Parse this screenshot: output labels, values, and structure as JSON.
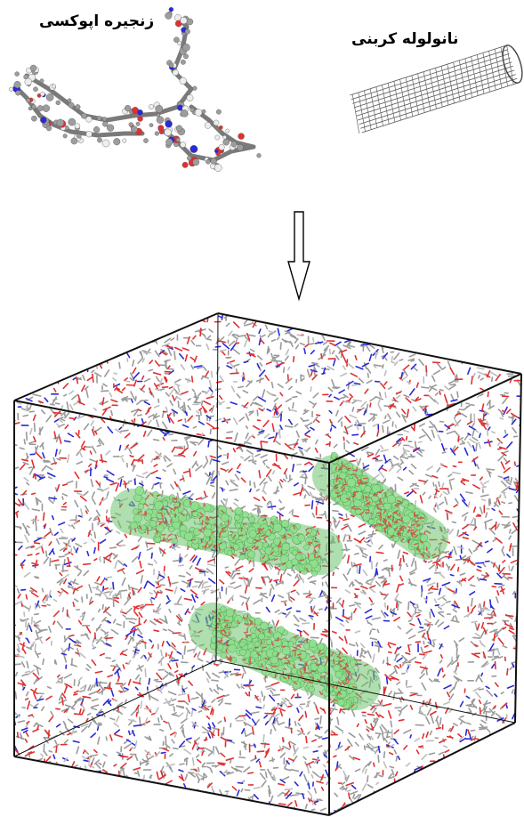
{
  "labels": {
    "epoxy_chain": "زنجیره اپوکسی",
    "carbon_nanotube": "نانولوله کربنی"
  },
  "colors": {
    "carbon": "#9a9a9a",
    "oxygen": "#e03030",
    "nitrogen": "#2a2ad8",
    "hydrogen": "#e8e8e8",
    "nanotube_atoms": "#8fe08f",
    "box_edges": "#111111"
  }
}
